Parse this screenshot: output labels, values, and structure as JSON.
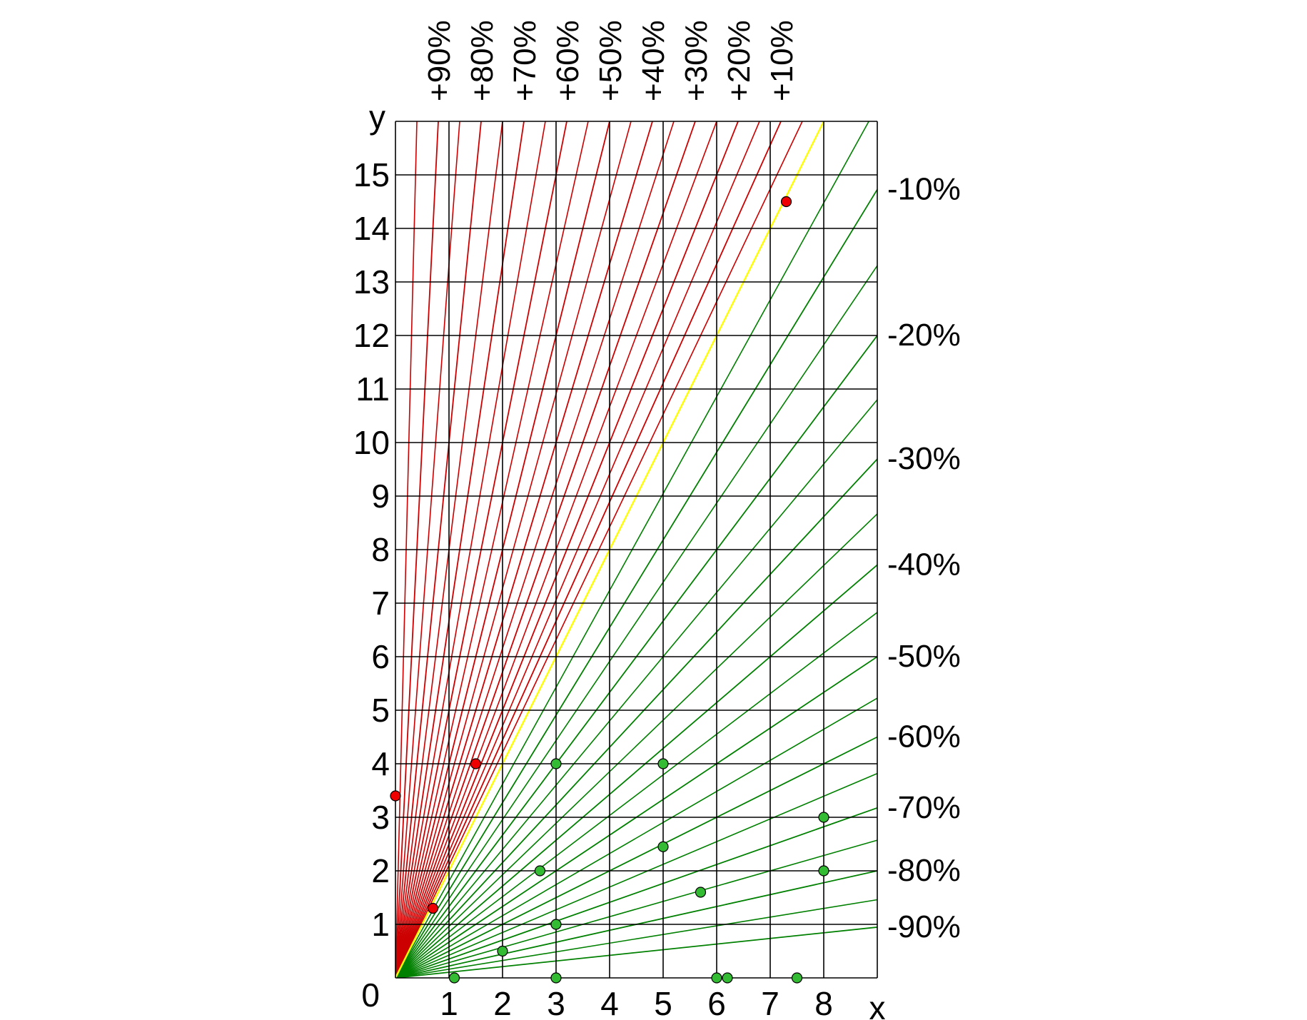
{
  "chart_data": {
    "type": "scatter",
    "title": "",
    "xlabel": "x",
    "ylabel": "y",
    "origin_label": "0",
    "xlim": [
      0,
      9
    ],
    "ylim": [
      0,
      16
    ],
    "x_ticks": [
      1,
      2,
      3,
      4,
      5,
      6,
      7,
      8
    ],
    "y_ticks": [
      1,
      2,
      3,
      4,
      5,
      6,
      7,
      8,
      9,
      10,
      11,
      12,
      13,
      14,
      15
    ],
    "grid": true,
    "reference_lines": {
      "identity_color": "#ffff00",
      "positive_color": "#cc0000",
      "negative_color": "#008000",
      "positive": [
        {
          "label": "+10%",
          "slope": 2.2222
        },
        {
          "label": "+20%",
          "slope": 2.5
        },
        {
          "label": "+30%",
          "slope": 2.8571
        },
        {
          "label": "+40%",
          "slope": 3.3333
        },
        {
          "label": "+50%",
          "slope": 4.0
        },
        {
          "label": "+60%",
          "slope": 5.0
        },
        {
          "label": "+70%",
          "slope": 6.6667
        },
        {
          "label": "+80%",
          "slope": 10.0
        },
        {
          "label": "+90%",
          "slope": 20.0
        }
      ],
      "positive_minor_slopes": [
        2.1053,
        2.3529,
        2.6667,
        3.0769,
        3.6364,
        4.4444,
        5.7143,
        8.0,
        13.3333,
        40.0
      ],
      "negative": [
        {
          "label": "-10%",
          "slope": 1.6364
        },
        {
          "label": "-20%",
          "slope": 1.3333
        },
        {
          "label": "-30%",
          "slope": 1.0769
        },
        {
          "label": "-40%",
          "slope": 0.8571
        },
        {
          "label": "-50%",
          "slope": 0.6667
        },
        {
          "label": "-60%",
          "slope": 0.5
        },
        {
          "label": "-70%",
          "slope": 0.3529
        },
        {
          "label": "-80%",
          "slope": 0.2222
        },
        {
          "label": "-90%",
          "slope": 0.1053
        }
      ],
      "negative_minor_slopes": [
        1.8095,
        1.4783,
        1.2,
        0.963,
        0.7586,
        0.5806,
        0.4242,
        0.2857,
        0.1622
      ]
    },
    "series": [
      {
        "color": "#ee0000",
        "points": [
          [
            0.0,
            3.4
          ],
          [
            0.7,
            1.3
          ],
          [
            1.5,
            4.0
          ],
          [
            7.3,
            14.5
          ]
        ]
      },
      {
        "color": "#33bb33",
        "points": [
          [
            1.1,
            0.0
          ],
          [
            2.0,
            0.5
          ],
          [
            2.7,
            2.0
          ],
          [
            3.0,
            4.0
          ],
          [
            3.0,
            1.0
          ],
          [
            3.0,
            0.0
          ],
          [
            5.0,
            4.0
          ],
          [
            5.0,
            2.45
          ],
          [
            5.7,
            1.6
          ],
          [
            6.0,
            0.0
          ],
          [
            6.2,
            0.0
          ],
          [
            7.5,
            0.0
          ],
          [
            8.0,
            3.0
          ],
          [
            8.0,
            2.0
          ]
        ]
      }
    ]
  }
}
